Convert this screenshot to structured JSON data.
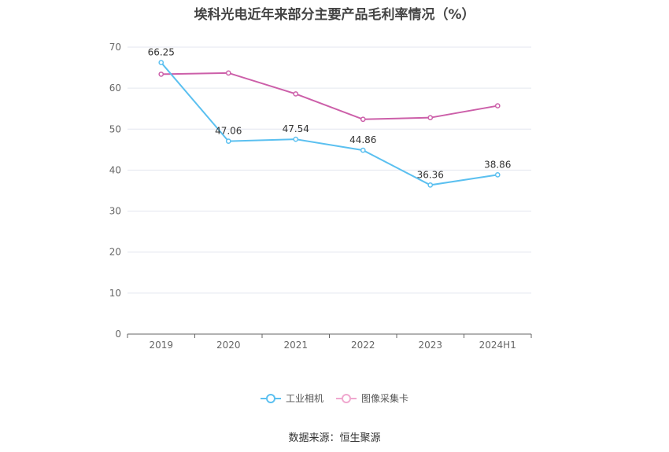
{
  "chart_data": {
    "type": "line",
    "title": "埃科光电近年来部分主要产品毛利率情况（%）",
    "categories": [
      "2019",
      "2020",
      "2021",
      "2022",
      "2023",
      "2024H1"
    ],
    "series": [
      {
        "name": "工业相机",
        "color": "#5bc0f0",
        "values": [
          66.25,
          47.06,
          47.54,
          44.86,
          36.36,
          38.86
        ],
        "show_labels": true
      },
      {
        "name": "图像采集卡",
        "color": "#cc5fa9",
        "values": [
          63.4,
          63.7,
          58.6,
          52.4,
          52.8,
          55.7
        ],
        "show_labels": false
      }
    ],
    "y_ticks": [
      "0",
      "10",
      "20",
      "30",
      "40",
      "50",
      "60",
      "70"
    ],
    "ylim": [
      0,
      70
    ],
    "grid": true,
    "legend_position": "bottom-center"
  },
  "source": "数据来源：恒生聚源"
}
